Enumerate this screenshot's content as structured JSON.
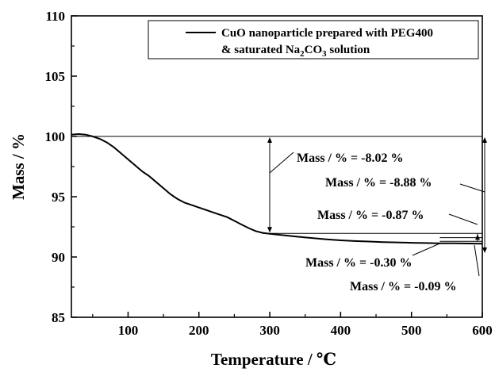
{
  "chart_data": {
    "type": "line",
    "xlabel": "Temperature / ℃",
    "ylabel": "Mass / %",
    "xlim": [
      20,
      600
    ],
    "ylim": [
      85,
      110
    ],
    "x_ticks": [
      "100",
      "200",
      "300",
      "400",
      "500",
      "600"
    ],
    "y_ticks": [
      "85",
      "90",
      "95",
      "100",
      "105",
      "110"
    ],
    "grid": false,
    "legend": {
      "placement": "top-right",
      "line1": "CuO nanoparticle prepared with PEG400",
      "line2_parts": [
        "& saturated Na",
        "2",
        "CO",
        "3",
        " solution"
      ]
    },
    "series": [
      {
        "x": [
          20,
          30,
          40,
          50,
          60,
          70,
          80,
          90,
          100,
          110,
          120,
          130,
          140,
          150,
          160,
          170,
          180,
          190,
          200,
          210,
          220,
          230,
          240,
          250,
          260,
          270,
          280,
          290,
          300,
          320,
          340,
          360,
          380,
          400,
          420,
          440,
          460,
          480,
          500,
          520,
          540,
          560,
          580,
          600
        ],
        "y": [
          100.15,
          100.2,
          100.15,
          100.0,
          99.8,
          99.5,
          99.1,
          98.6,
          98.1,
          97.6,
          97.1,
          96.7,
          96.2,
          95.7,
          95.2,
          94.8,
          94.5,
          94.3,
          94.1,
          93.9,
          93.7,
          93.5,
          93.3,
          93.0,
          92.7,
          92.4,
          92.15,
          92.0,
          91.92,
          91.8,
          91.68,
          91.57,
          91.47,
          91.38,
          91.32,
          91.28,
          91.24,
          91.21,
          91.18,
          91.16,
          91.14,
          91.13,
          91.12,
          91.1
        ]
      }
    ],
    "annotations": [
      {
        "text": "Mass / % = -8.02 %"
      },
      {
        "text": "Mass / % = -8.88 %"
      },
      {
        "text": "Mass / % = -0.87 %"
      },
      {
        "text": "Mass / % = -0.30 %"
      },
      {
        "text": "Mass / % = -0.09 %"
      }
    ]
  }
}
